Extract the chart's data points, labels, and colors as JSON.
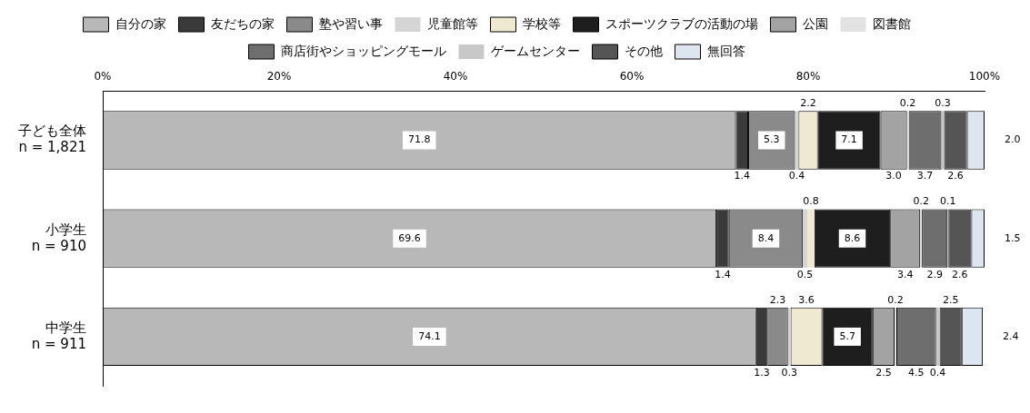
{
  "chart_data": {
    "type": "bar",
    "orientation": "horizontal",
    "stacked": true,
    "legend": "top",
    "grid": false,
    "categories": [
      "子ども全体\nn = 1,821",
      "小学生\nn = 910",
      "中学生\nn = 911"
    ],
    "xlim": [
      0,
      100
    ],
    "xticks": [
      {
        "value": 0,
        "label": "0%"
      },
      {
        "value": 20,
        "label": "20%"
      },
      {
        "value": 40,
        "label": "40%"
      },
      {
        "value": 60,
        "label": "60%"
      },
      {
        "value": 80,
        "label": "80%"
      },
      {
        "value": 100,
        "label": "100%"
      }
    ],
    "series": [
      {
        "name": "自分の家",
        "color": "#b8b8b8",
        "values": [
          71.8,
          69.6,
          74.1
        ],
        "value_labels": [
          "71.8",
          "69.6",
          "74.1"
        ]
      },
      {
        "name": "友だちの家",
        "color": "#3a3a3a",
        "values": [
          1.4,
          1.4,
          1.3
        ],
        "value_labels": [
          "1.4",
          "1.4",
          "1.3"
        ]
      },
      {
        "name": "塾や習い事",
        "color": "#8a8a8a",
        "values": [
          5.3,
          8.4,
          2.3
        ],
        "value_labels": [
          "5.3",
          "8.4",
          "2.3"
        ]
      },
      {
        "name": "児童館等",
        "color": "#d5d5d5",
        "values": [
          0.4,
          0.5,
          0.3
        ],
        "value_labels": [
          "0.4",
          "0.5",
          "0.3"
        ]
      },
      {
        "name": "学校等",
        "color": "#efe9d2",
        "values": [
          2.2,
          0.8,
          3.6
        ],
        "value_labels": [
          "2.2",
          "0.8",
          "3.6"
        ]
      },
      {
        "name": "スポーツクラブの活動の場",
        "color": "#1e1e1e",
        "values": [
          7.1,
          8.6,
          5.7
        ],
        "value_labels": [
          "7.1",
          "8.6",
          "5.7"
        ]
      },
      {
        "name": "公園",
        "color": "#a3a3a3",
        "values": [
          3.0,
          3.4,
          2.5
        ],
        "value_labels": [
          "3.0",
          "3.4",
          "2.5"
        ]
      },
      {
        "name": "図書館",
        "color": "#e2e2e2",
        "values": [
          0.2,
          0.2,
          0.2
        ],
        "value_labels": [
          "0.2",
          "0.2",
          "0.2"
        ]
      },
      {
        "name": "商店街やショッピングモール",
        "color": "#6e6e6e",
        "values": [
          3.7,
          2.9,
          4.5
        ],
        "value_labels": [
          "3.7",
          "2.9",
          "4.5"
        ]
      },
      {
        "name": "ゲームセンター",
        "color": "#c8c8c8",
        "values": [
          0.3,
          0.1,
          0.4
        ],
        "value_labels": [
          "0.3",
          "0.1",
          "0.4"
        ]
      },
      {
        "name": "その他",
        "color": "#555555",
        "values": [
          2.6,
          2.6,
          2.5
        ],
        "value_labels": [
          "2.6",
          "2.6",
          "2.5"
        ]
      },
      {
        "name": "無回答",
        "color": "#dde5ee",
        "values": [
          2.0,
          1.5,
          2.4
        ],
        "value_labels": [
          "2.0",
          "1.5",
          "2.4"
        ]
      }
    ]
  }
}
